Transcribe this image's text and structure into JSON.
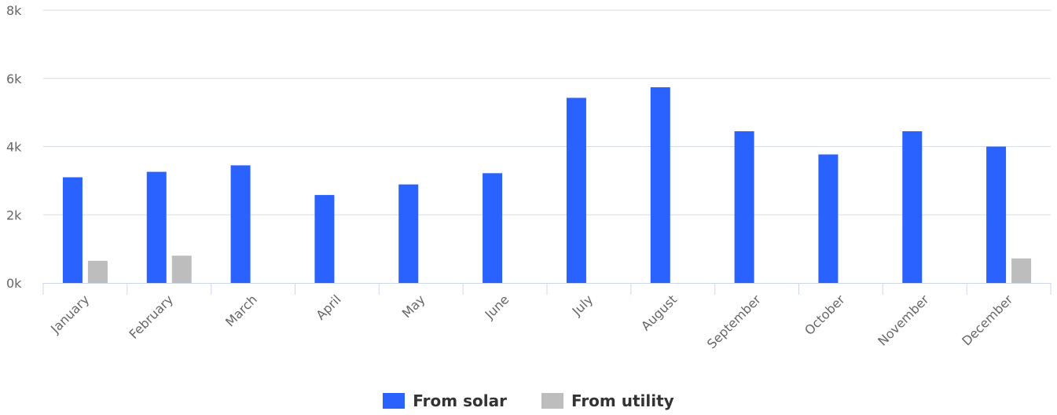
{
  "chart_data": {
    "type": "bar",
    "title": "",
    "xlabel": "",
    "ylabel": "",
    "categories": [
      "January",
      "February",
      "March",
      "April",
      "May",
      "June",
      "July",
      "August",
      "September",
      "October",
      "November",
      "December"
    ],
    "series": [
      {
        "name": "From solar",
        "color": "#2962ff",
        "values": [
          3100,
          3260,
          3450,
          2580,
          2890,
          3220,
          5430,
          5740,
          4450,
          3770,
          4450,
          4000
        ]
      },
      {
        "name": "From utility",
        "color": "#bdbdbd",
        "values": [
          650,
          800,
          null,
          null,
          null,
          null,
          null,
          null,
          null,
          null,
          null,
          720
        ]
      }
    ],
    "ylim": [
      0,
      8000
    ],
    "yticks": [
      0,
      2000,
      4000,
      6000,
      8000
    ],
    "ytick_labels": [
      "0k",
      "2k",
      "4k",
      "6k",
      "8k"
    ],
    "grid": true,
    "legend": "bottom-center"
  }
}
